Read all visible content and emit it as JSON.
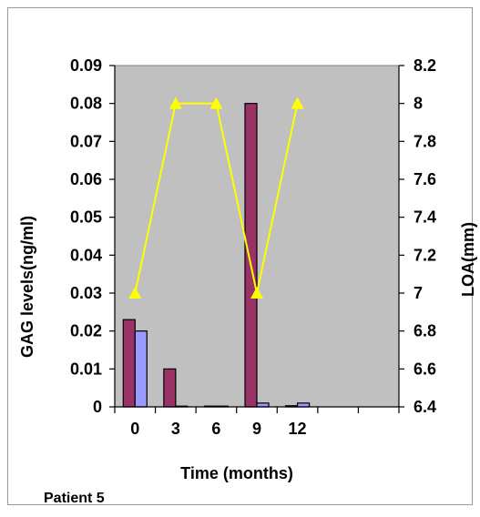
{
  "chart_data": {
    "type": "bar",
    "categories": [
      "0",
      "3",
      "6",
      "9",
      "12"
    ],
    "series": [
      {
        "kind": "bar",
        "axis": "left",
        "color": "#993366",
        "values": [
          0.023,
          0.01,
          0.0002,
          0.08,
          0.0003
        ]
      },
      {
        "kind": "bar",
        "axis": "left",
        "color": "#9999ff",
        "values": [
          0.02,
          0.0,
          0.0,
          0.001,
          0.001
        ]
      },
      {
        "kind": "line",
        "axis": "right",
        "color": "#ffff00",
        "values": [
          7.0,
          8.0,
          8.0,
          7.0,
          8.0
        ]
      }
    ],
    "extra_empty_categories": 2,
    "ylim_left": [
      0,
      0.09
    ],
    "ylim_right": [
      6.4,
      8.2
    ],
    "yticks_left": [
      "0",
      "0.01",
      "0.02",
      "0.03",
      "0.04",
      "0.05",
      "0.06",
      "0.07",
      "0.08",
      "0.09"
    ],
    "yticks_right": [
      "6.4",
      "6.6",
      "6.8",
      "7",
      "7.2",
      "7.4",
      "7.6",
      "7.8",
      "8",
      "8.2"
    ],
    "xlabel": "Time (months)",
    "ylabel_left": "GAG levels(ng/ml)",
    "ylabel_right": "LOA(mm)",
    "caption": "Patient 5",
    "plot_background": "#c0c0c0",
    "grid": false
  }
}
